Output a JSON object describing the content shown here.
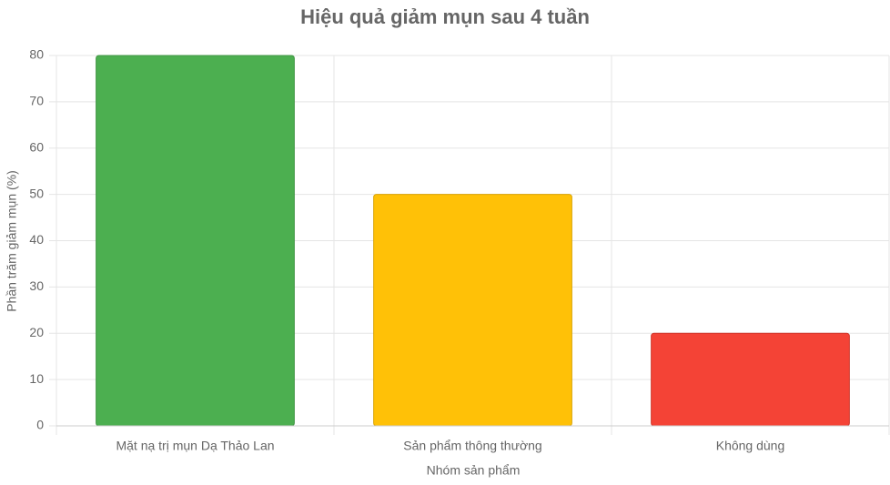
{
  "chart_data": {
    "type": "bar",
    "title": "Hiệu quả giảm mụn sau 4 tuần",
    "x_label": "Nhóm sản phẩm",
    "y_label": "Phần trăm giảm mụn (%)",
    "categories": [
      "Mặt nạ trị mụn Dạ Thảo Lan",
      "Sản phẩm thông thường",
      "Không dùng"
    ],
    "values": [
      80,
      50,
      20
    ],
    "colors": [
      "#4caf50",
      "#ffc107",
      "#f44336"
    ],
    "ylim": [
      0,
      80
    ],
    "yticks": [
      0,
      10,
      20,
      30,
      40,
      50,
      60,
      70,
      80
    ],
    "grid": true
  }
}
